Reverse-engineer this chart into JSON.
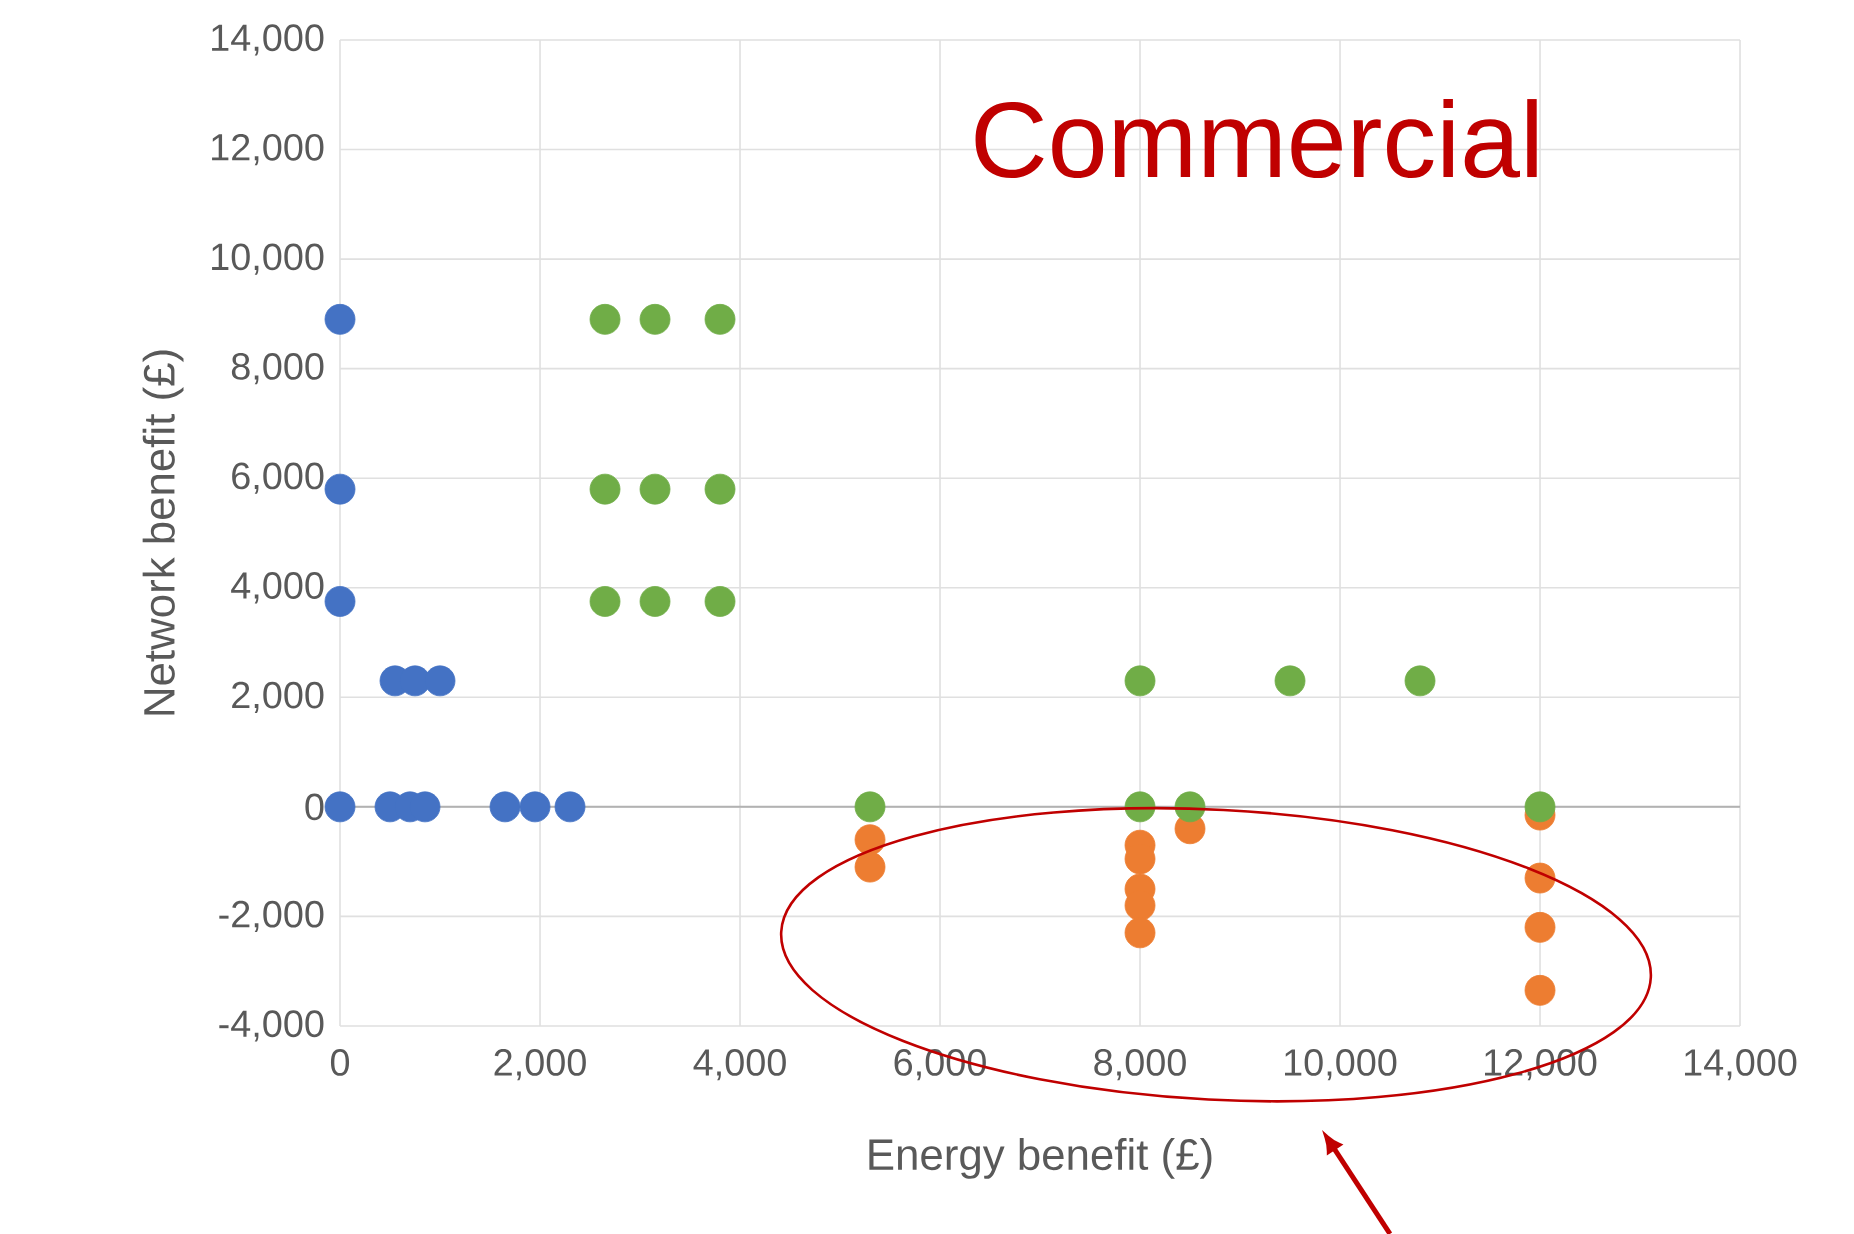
{
  "chart_data": {
    "type": "scatter",
    "title": "Commercial",
    "xlabel": "Energy benefit (£)",
    "ylabel": "Network benefit (£)",
    "xlim": [
      0,
      14000
    ],
    "ylim": [
      -4000,
      14000
    ],
    "xticks": [
      {
        "value": 0,
        "label": "0"
      },
      {
        "value": 2000,
        "label": "2,000"
      },
      {
        "value": 4000,
        "label": "4,000"
      },
      {
        "value": 6000,
        "label": "6,000"
      },
      {
        "value": 8000,
        "label": "8,000"
      },
      {
        "value": 10000,
        "label": "10,000"
      },
      {
        "value": 12000,
        "label": "12,000"
      },
      {
        "value": 14000,
        "label": "14,000"
      }
    ],
    "yticks": [
      {
        "value": -4000,
        "label": "-4,000"
      },
      {
        "value": -2000,
        "label": "-2,000"
      },
      {
        "value": 0,
        "label": "0"
      },
      {
        "value": 2000,
        "label": "2,000"
      },
      {
        "value": 4000,
        "label": "4,000"
      },
      {
        "value": 6000,
        "label": "6,000"
      },
      {
        "value": 8000,
        "label": "8,000"
      },
      {
        "value": 10000,
        "label": "10,000"
      },
      {
        "value": 12000,
        "label": "12,000"
      },
      {
        "value": 14000,
        "label": "14,000"
      }
    ],
    "grid": true,
    "marker": "circle",
    "series": [
      {
        "color": "#4472c4",
        "x": [
          0,
          0,
          0,
          0,
          550,
          750,
          1000,
          500,
          700,
          850,
          1650,
          1950,
          2300
        ],
        "values": [
          8900,
          5800,
          3750,
          0,
          2300,
          2300,
          2300,
          0,
          0,
          0,
          0,
          0,
          0
        ]
      },
      {
        "color": "#ed7d31",
        "x": [
          5300,
          5300,
          8000,
          8000,
          8000,
          8000,
          8000,
          8500,
          12000,
          12000,
          12000,
          12000
        ],
        "values": [
          -600,
          -1100,
          -700,
          -950,
          -1500,
          -1800,
          -2300,
          -400,
          -150,
          -1300,
          -2200,
          -3350
        ]
      },
      {
        "color": "#70ad47",
        "x": [
          2650,
          3150,
          3800,
          2650,
          3150,
          3800,
          2650,
          3150,
          3800,
          8000,
          9500,
          10800,
          5300,
          8000,
          8500,
          12000
        ],
        "values": [
          8900,
          8900,
          8900,
          5800,
          5800,
          5800,
          3750,
          3750,
          3750,
          2300,
          2300,
          2300,
          0,
          0,
          0,
          0
        ]
      }
    ]
  }
}
